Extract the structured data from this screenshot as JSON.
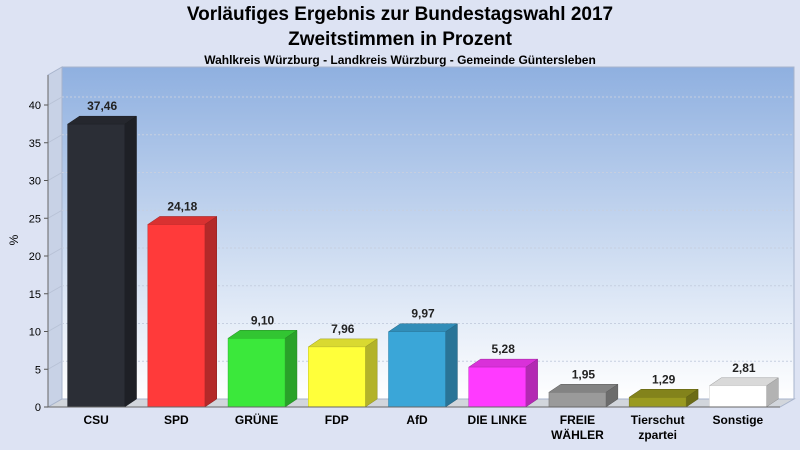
{
  "chart_data": {
    "type": "bar",
    "title": "Vorläufiges Ergebnis zur Bundestagswahl 2017",
    "subtitle": "Zweitstimmen in Prozent",
    "caption": "Wahlkreis Würzburg - Landkreis Würzburg - Gemeinde Güntersleben",
    "ylabel": "%",
    "xlabel": "",
    "ylim": [
      0,
      40
    ],
    "yticks": [
      0,
      5,
      10,
      15,
      20,
      25,
      30,
      35,
      40
    ],
    "grid": true,
    "categories": [
      [
        "CSU"
      ],
      [
        "SPD"
      ],
      [
        "GRÜNE"
      ],
      [
        "FDP"
      ],
      [
        "AfD"
      ],
      [
        "DIE LINKE"
      ],
      [
        "FREIE",
        "WÄHLER"
      ],
      [
        "Tierschut",
        "zpartei"
      ],
      [
        "Sonstige"
      ]
    ],
    "values": [
      37.46,
      24.18,
      9.1,
      7.96,
      9.97,
      5.28,
      1.95,
      1.29,
      2.81
    ],
    "value_labels": [
      "37,46",
      "24,18",
      "9,10",
      "7,96",
      "9,97",
      "5,28",
      "1,95",
      "1,29",
      "2,81"
    ],
    "colors": [
      "#2b2e36",
      "#ff3a3a",
      "#3be83b",
      "#ffff3a",
      "#3aa6d8",
      "#ff3aff",
      "#9a9a9a",
      "#9a9a20",
      "#ffffff"
    ]
  }
}
